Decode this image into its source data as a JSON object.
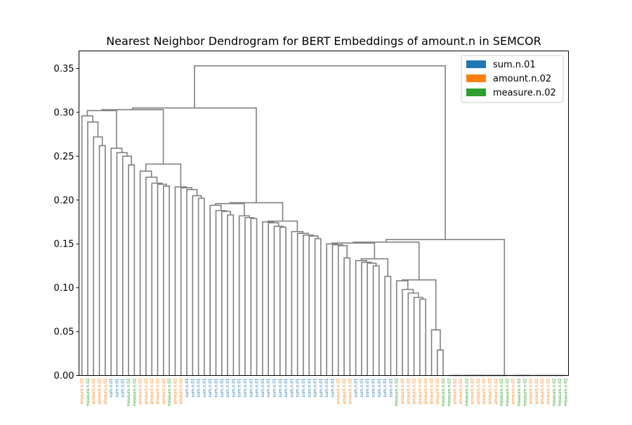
{
  "chart_data": {
    "type": "dendrogram",
    "title": "Nearest Neighbor Dendrogram for BERT Embeddings of amount.n in SEMCOR",
    "xlabel": "",
    "ylabel": "",
    "ylim": [
      0,
      0.37
    ],
    "yticks": [
      0.0,
      0.05,
      0.1,
      0.15,
      0.2,
      0.25,
      0.3,
      0.35
    ],
    "ytick_labels": [
      "0.00",
      "0.05",
      "0.10",
      "0.15",
      "0.20",
      "0.25",
      "0.30",
      "0.35"
    ],
    "grid": false,
    "legend_position": "top-right",
    "link_color": "#808080",
    "classes": [
      {
        "name": "sum.n.01",
        "color": "#1f77b4"
      },
      {
        "name": "amount.n.02",
        "color": "#ff7f0e"
      },
      {
        "name": "measure.n.02",
        "color": "#2ca02c"
      }
    ],
    "leaves": [
      "amount.n.02",
      "measure.n.02",
      "amount.n.02",
      "amount.n.02",
      "amount.n.02",
      "sum.n.01",
      "sum.n.01",
      "sum.n.01",
      "measure.n.02",
      "measure.n.02",
      "amount.n.02",
      "amount.n.02",
      "amount.n.02",
      "amount.n.02",
      "amount.n.02",
      "measure.n.02",
      "amount.n.02",
      "amount.n.02",
      "sum.n.01",
      "sum.n.01",
      "sum.n.01",
      "sum.n.01",
      "sum.n.01",
      "sum.n.01",
      "sum.n.01",
      "sum.n.01",
      "sum.n.01",
      "sum.n.01",
      "sum.n.01",
      "sum.n.01",
      "sum.n.01",
      "sum.n.01",
      "sum.n.01",
      "sum.n.01",
      "sum.n.01",
      "sum.n.01",
      "sum.n.01",
      "sum.n.01",
      "sum.n.01",
      "sum.n.01",
      "sum.n.01",
      "sum.n.01",
      "sum.n.01",
      "sum.n.01",
      "amount.n.02",
      "amount.n.02",
      "amount.n.02",
      "sum.n.01",
      "sum.n.01",
      "sum.n.01",
      "sum.n.01",
      "sum.n.01",
      "sum.n.01",
      "sum.n.01",
      "measure.n.02",
      "amount.n.02",
      "amount.n.02",
      "amount.n.02",
      "amount.n.02",
      "amount.n.02",
      "amount.n.02",
      "amount.n.02",
      "measure.n.02",
      "measure.n.02",
      "amount.n.02",
      "amount.n.02",
      "measure.n.02",
      "amount.n.02",
      "amount.n.02",
      "amount.n.02",
      "amount.n.02",
      "amount.n.02",
      "measure.n.02",
      "measure.n.02",
      "amount.n.02",
      "measure.n.02",
      "measure.n.02",
      "amount.n.02",
      "amount.n.02",
      "amount.n.02",
      "amount.n.02",
      "measure.n.02",
      "measure.n.02",
      "measure.n.02"
    ],
    "links": [
      {
        "left": "a",
        "right": "b",
        "height": 0.353
      },
      {
        "left": "a",
        "right": "b",
        "height": 0.305
      },
      {
        "left": "a",
        "right": "b",
        "height": 0.303
      },
      {
        "left": "a",
        "right": "b",
        "height": 0.302
      },
      {
        "left": "a",
        "right": "b",
        "height": 0.296
      },
      {
        "left": "a",
        "right": "b",
        "height": 0.289
      },
      {
        "left": "a",
        "right": "b",
        "height": 0.272
      },
      {
        "left": "a",
        "right": "b",
        "height": 0.262
      },
      {
        "left": "a",
        "right": "b",
        "height": 0.259
      },
      {
        "left": "a",
        "right": "b",
        "height": 0.254
      },
      {
        "left": "a",
        "right": "b",
        "height": 0.25
      },
      {
        "left": "a",
        "right": "b",
        "height": 0.24
      },
      {
        "left": "a",
        "right": "b",
        "height": 0.241
      },
      {
        "left": "a",
        "right": "b",
        "height": 0.233
      },
      {
        "left": "a",
        "right": "b",
        "height": 0.235
      },
      {
        "left": "a",
        "right": "b",
        "height": 0.23
      },
      {
        "left": "a",
        "right": "b",
        "height": 0.218
      },
      {
        "left": "a",
        "right": "b",
        "height": 0.216
      },
      {
        "left": "a",
        "right": "b",
        "height": 0.215
      },
      {
        "left": "a",
        "right": "b",
        "height": 0.214
      },
      {
        "left": "a",
        "right": "b",
        "height": 0.212
      },
      {
        "left": "a",
        "right": "b",
        "height": 0.205
      },
      {
        "left": "a",
        "right": "b",
        "height": 0.202
      },
      {
        "left": "a",
        "right": "b",
        "height": 0.197
      },
      {
        "left": "a",
        "right": "b",
        "height": 0.196
      },
      {
        "left": "a",
        "right": "b",
        "height": 0.194
      },
      {
        "left": "a",
        "right": "b",
        "height": 0.188
      },
      {
        "left": "a",
        "right": "b",
        "height": 0.187
      },
      {
        "left": "a",
        "right": "b",
        "height": 0.183
      },
      {
        "left": "a",
        "right": "b",
        "height": 0.182
      },
      {
        "left": "a",
        "right": "b",
        "height": 0.18
      },
      {
        "left": "a",
        "right": "b",
        "height": 0.179
      },
      {
        "left": "a",
        "right": "b",
        "height": 0.176
      },
      {
        "left": "a",
        "right": "b",
        "height": 0.175
      },
      {
        "left": "a",
        "right": "b",
        "height": 0.174
      },
      {
        "left": "a",
        "right": "b",
        "height": 0.17
      },
      {
        "left": "a",
        "right": "b",
        "height": 0.169
      },
      {
        "left": "a",
        "right": "b",
        "height": 0.164
      },
      {
        "left": "a",
        "right": "b",
        "height": 0.162
      },
      {
        "left": "a",
        "right": "b",
        "height": 0.16
      },
      {
        "left": "a",
        "right": "b",
        "height": 0.159
      },
      {
        "left": "a",
        "right": "b",
        "height": 0.156
      },
      {
        "left": "a",
        "right": "b",
        "height": 0.155
      },
      {
        "left": "a",
        "right": "b",
        "height": 0.152
      },
      {
        "left": "a",
        "right": "b",
        "height": 0.151
      },
      {
        "left": "a",
        "right": "b",
        "height": 0.15
      },
      {
        "left": "a",
        "right": "b",
        "height": 0.149
      },
      {
        "left": "a",
        "right": "b",
        "height": 0.148
      },
      {
        "left": "a",
        "right": "b",
        "height": 0.134
      },
      {
        "left": "a",
        "right": "b",
        "height": 0.133
      },
      {
        "left": "a",
        "right": "b",
        "height": 0.131
      },
      {
        "left": "a",
        "right": "b",
        "height": 0.129
      },
      {
        "left": "a",
        "right": "b",
        "height": 0.128
      },
      {
        "left": "a",
        "right": "b",
        "height": 0.125
      },
      {
        "left": "a",
        "right": "b",
        "height": 0.113
      },
      {
        "left": "a",
        "right": "b",
        "height": 0.109
      },
      {
        "left": "a",
        "right": "b",
        "height": 0.108
      },
      {
        "left": "a",
        "right": "b",
        "height": 0.098
      },
      {
        "left": "a",
        "right": "b",
        "height": 0.094
      },
      {
        "left": "a",
        "right": "b",
        "height": 0.089
      },
      {
        "left": "a",
        "right": "b",
        "height": 0.087
      },
      {
        "left": "a",
        "right": "b",
        "height": 0.052
      },
      {
        "left": "a",
        "right": "b",
        "height": 0.029
      }
    ]
  }
}
